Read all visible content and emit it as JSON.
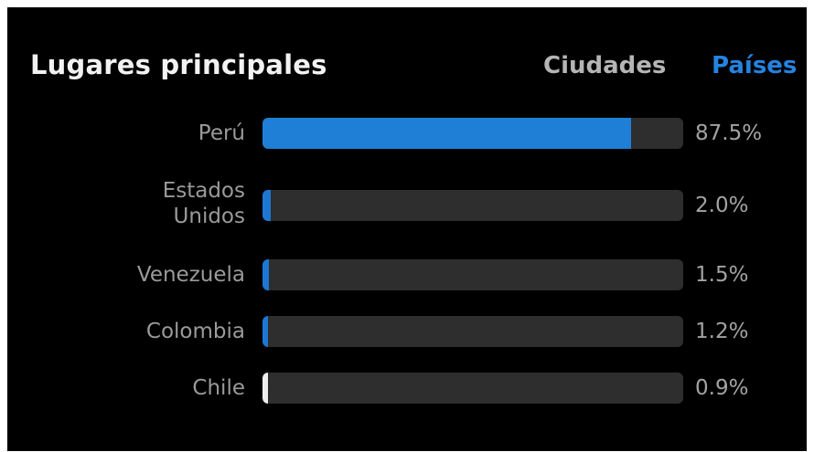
{
  "header": {
    "title": "Lugares principales",
    "tabs": [
      {
        "label": "Ciudades",
        "active": false
      },
      {
        "label": "Países",
        "active": true
      }
    ]
  },
  "colors": {
    "accent": "#1f7fd6",
    "track": "#2e2e2e",
    "small_fill": "#1c78d2",
    "chile_fill": "#eeeeee"
  },
  "locations": [
    {
      "name": "Perú",
      "percent_label": "87.5%",
      "value": 87.5
    },
    {
      "name": "Estados\nUnidos",
      "percent_label": "2.0%",
      "value": 2.0
    },
    {
      "name": "Venezuela",
      "percent_label": "1.5%",
      "value": 1.5
    },
    {
      "name": "Colombia",
      "percent_label": "1.2%",
      "value": 1.2
    },
    {
      "name": "Chile",
      "percent_label": "0.9%",
      "value": 0.9
    }
  ]
}
